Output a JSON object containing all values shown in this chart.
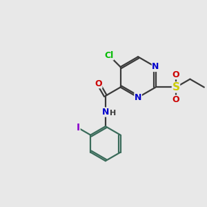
{
  "bg_color": "#e8e8e8",
  "bond_color": "#3a3a3a",
  "bond_width": 1.6,
  "atom_colors": {
    "C": "#3a3a3a",
    "N": "#0000cc",
    "O": "#cc0000",
    "S": "#cccc00",
    "Cl": "#00bb00",
    "I": "#8b00cc",
    "H": "#3a3a3a"
  },
  "font_size": 9,
  "ring_color": "#3a6b5a"
}
